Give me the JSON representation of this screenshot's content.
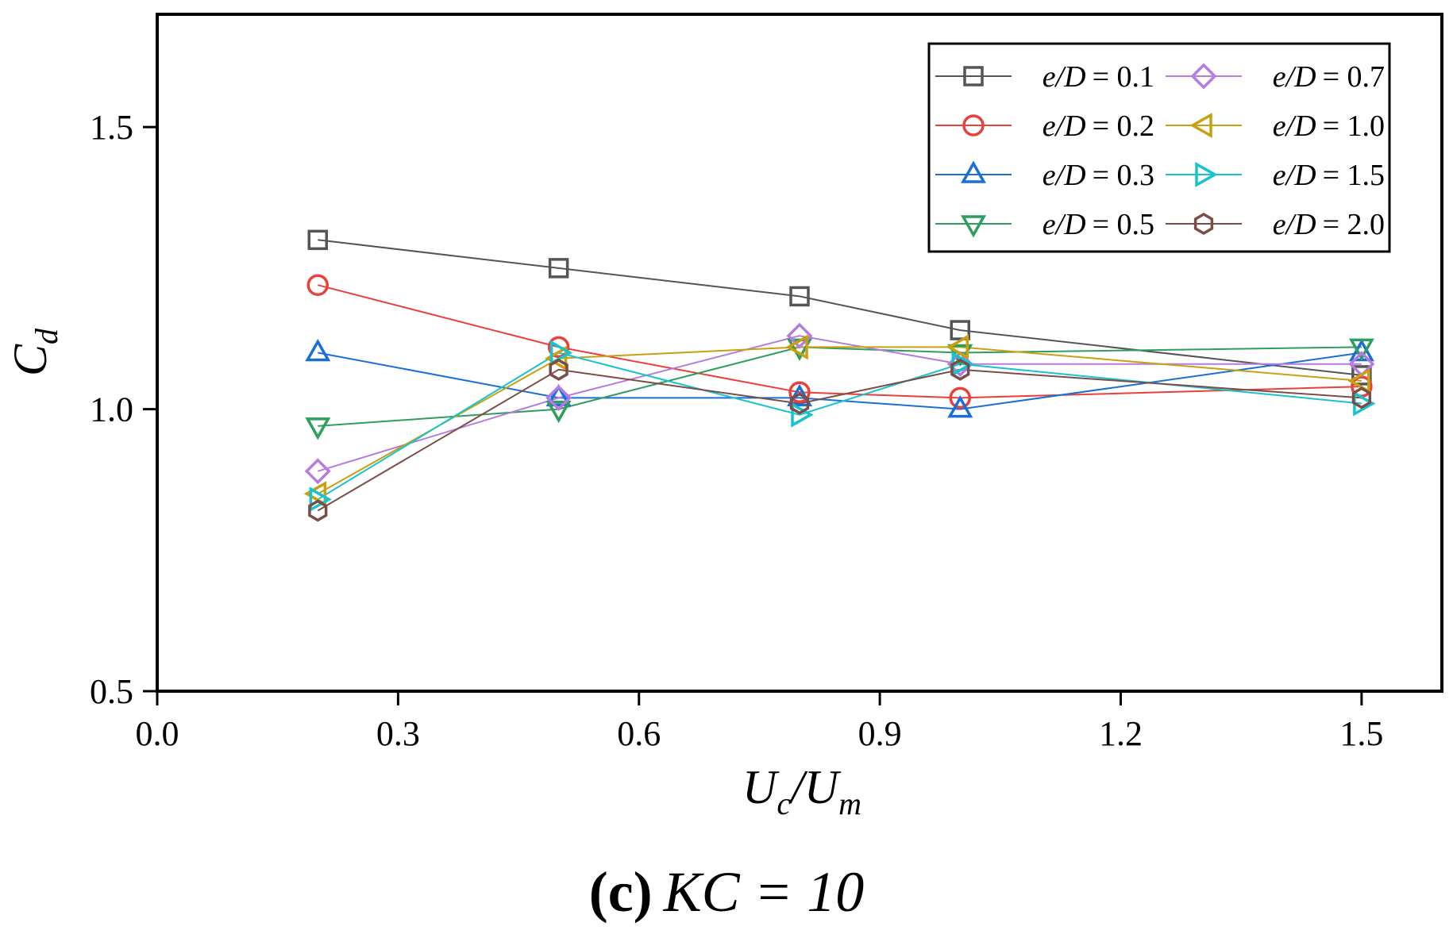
{
  "chart_data": {
    "type": "line",
    "title": "",
    "xlabel": "U_c/U_m",
    "ylabel": "C_d",
    "xlim": [
      0.0,
      1.6
    ],
    "ylim": [
      0.5,
      1.7
    ],
    "xticks": [
      0.0,
      0.3,
      0.6,
      0.9,
      1.2,
      1.5
    ],
    "xtick_labels": [
      "0.0",
      "0.3",
      "0.6",
      "0.9",
      "1.2",
      "1.5"
    ],
    "yticks": [
      0.5,
      1.0,
      1.5
    ],
    "ytick_labels": [
      "0.5",
      "1.0",
      "1.5"
    ],
    "grid": false,
    "legend_position": "top-right",
    "x": [
      0.2,
      0.5,
      0.8,
      1.0,
      1.5
    ],
    "series": [
      {
        "name": "e/D = 0.1",
        "label_var": "e/D",
        "label_val": "= 0.1",
        "color": "#555555",
        "marker": "square",
        "values": [
          1.3,
          1.25,
          1.2,
          1.14,
          1.06
        ]
      },
      {
        "name": "e/D = 0.2",
        "label_var": "e/D",
        "label_val": "= 0.2",
        "color": "#e8403a",
        "marker": "circle",
        "values": [
          1.22,
          1.11,
          1.03,
          1.02,
          1.04
        ]
      },
      {
        "name": "e/D = 0.3",
        "label_var": "e/D",
        "label_val": "= 0.3",
        "color": "#1a6fd6",
        "marker": "triangle-up",
        "values": [
          1.1,
          1.02,
          1.02,
          1.0,
          1.1
        ]
      },
      {
        "name": "e/D = 0.5",
        "label_var": "e/D",
        "label_val": "= 0.5",
        "color": "#2e9e5e",
        "marker": "triangle-down",
        "values": [
          0.97,
          1.0,
          1.11,
          1.1,
          1.11
        ]
      },
      {
        "name": "e/D = 0.7",
        "label_var": "e/D",
        "label_val": "= 0.7",
        "color": "#b57be0",
        "marker": "diamond",
        "values": [
          0.89,
          1.02,
          1.13,
          1.08,
          1.08
        ]
      },
      {
        "name": "e/D = 1.0",
        "label_var": "e/D",
        "label_val": "= 1.0",
        "color": "#c9a010",
        "marker": "triangle-left",
        "values": [
          0.85,
          1.09,
          1.11,
          1.11,
          1.05
        ]
      },
      {
        "name": "e/D = 1.5",
        "label_var": "e/D",
        "label_val": "= 1.5",
        "color": "#17c3cf",
        "marker": "triangle-right",
        "values": [
          0.84,
          1.1,
          0.99,
          1.08,
          1.01
        ]
      },
      {
        "name": "e/D = 2.0",
        "label_var": "e/D",
        "label_val": "= 2.0",
        "color": "#7a4e46",
        "marker": "hexagon",
        "values": [
          0.82,
          1.07,
          1.01,
          1.07,
          1.02
        ]
      }
    ],
    "annotations": [
      {
        "label": "(c)",
        "text": "KC = 10"
      }
    ]
  }
}
